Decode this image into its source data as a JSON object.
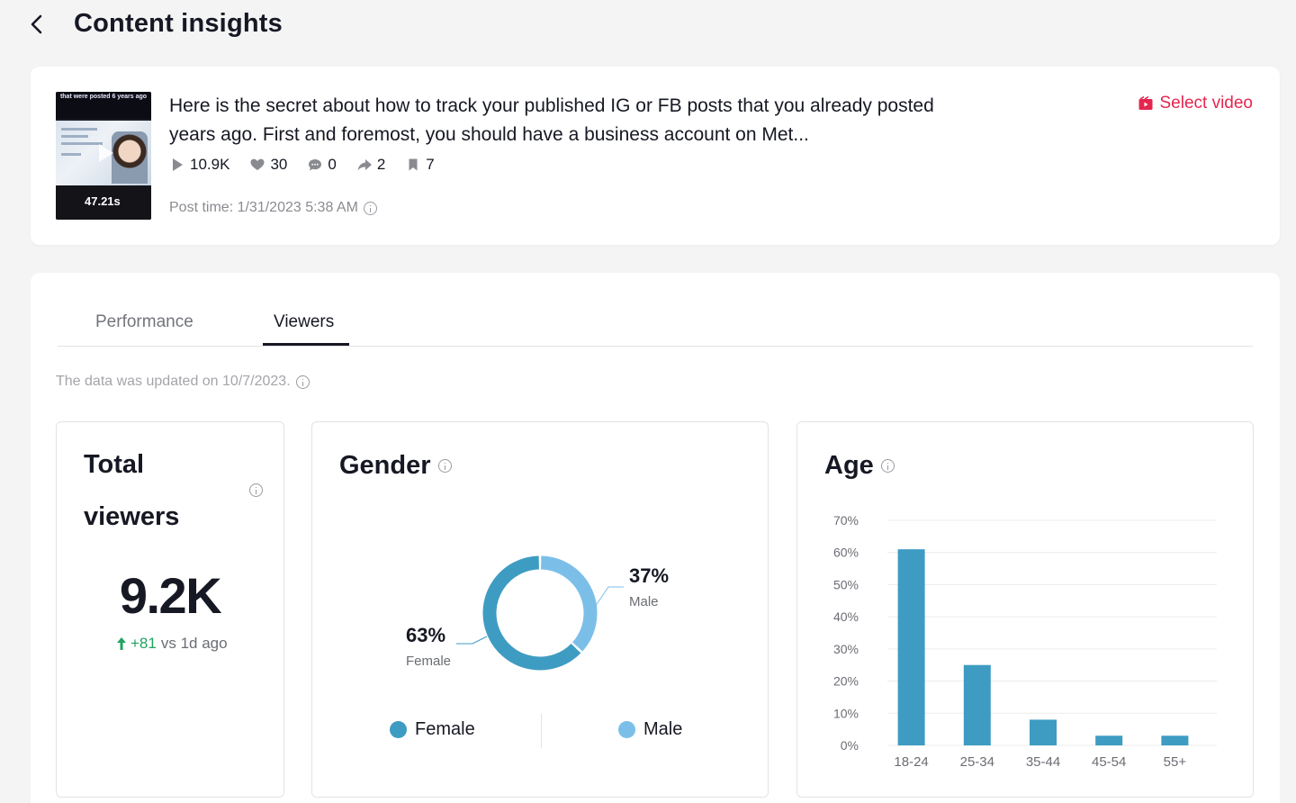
{
  "header": {
    "title": "Content insights"
  },
  "video": {
    "thumbnail_caption": "that were posted 6 years ago",
    "duration": "47.21s",
    "description": "Here is the secret about how to track your published IG or FB posts that you already posted years ago. First and foremost, you should have a business account on Met...",
    "stats": {
      "views": "10.9K",
      "likes": "30",
      "comments": "0",
      "shares": "2",
      "saves": "7"
    },
    "post_time": "Post time: 1/31/2023 5:38 AM",
    "select_label": "Select video"
  },
  "tabs": [
    {
      "label": "Performance",
      "active": false
    },
    {
      "label": "Viewers",
      "active": true
    }
  ],
  "updated_text": "The data was updated on 10/7/2023.",
  "total_viewers": {
    "title": "Total viewers",
    "value": "9.2K",
    "delta": "+81",
    "delta_suffix": "vs 1d ago"
  },
  "gender": {
    "title": "Gender",
    "female_pct": "63%",
    "female_label": "Female",
    "male_pct": "37%",
    "male_label": "Male",
    "legend_female": "Female",
    "legend_male": "Male",
    "colors": {
      "female": "#3e9cc2",
      "male": "#7bbfe8"
    }
  },
  "age": {
    "title": "Age"
  },
  "chart_data": [
    {
      "type": "pie",
      "title": "Gender",
      "categories": [
        "Female",
        "Male"
      ],
      "values": [
        63,
        37
      ],
      "colors": [
        "#3e9cc2",
        "#7bbfe8"
      ]
    },
    {
      "type": "bar",
      "title": "Age",
      "categories": [
        "18-24",
        "25-34",
        "35-44",
        "45-54",
        "55+"
      ],
      "values": [
        61,
        25,
        8,
        3,
        3
      ],
      "ylim": [
        0,
        70
      ],
      "yticks": [
        "0%",
        "10%",
        "20%",
        "30%",
        "40%",
        "50%",
        "60%",
        "70%"
      ],
      "grid": true,
      "color": "#3e9cc2"
    }
  ]
}
